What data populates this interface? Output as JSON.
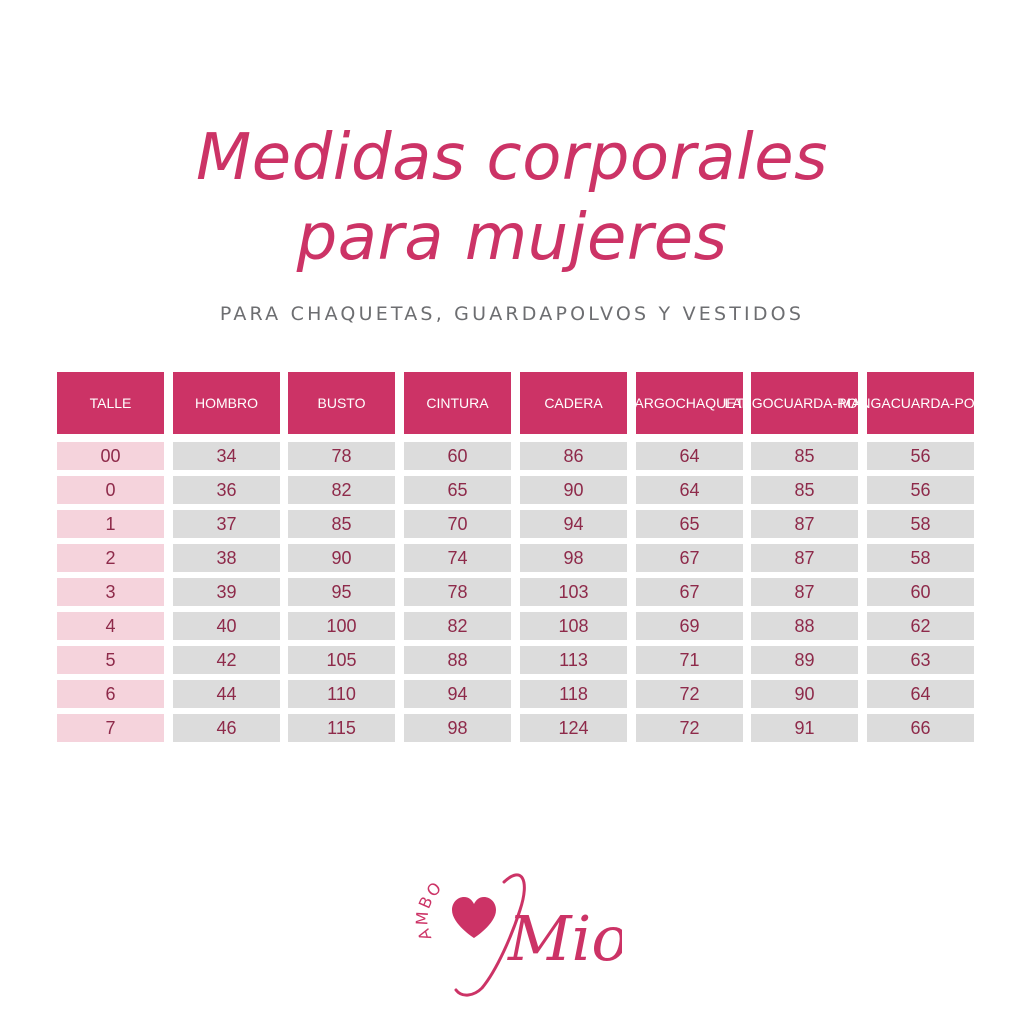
{
  "title": {
    "line1": "Medidas corporales",
    "line2": "para mujeres"
  },
  "subtitle": "PARA CHAQUETAS, GUARDAPOLVOS Y VESTIDOS",
  "table": {
    "headers": [
      [
        "TALLE"
      ],
      [
        "HOMBRO"
      ],
      [
        "BUSTO"
      ],
      [
        "CINTURA"
      ],
      [
        "CADERA"
      ],
      [
        "LARGO",
        "CHAQUETA"
      ],
      [
        "LARGO",
        "CUARDA-",
        "POLVO"
      ],
      [
        "MANGA",
        "CUARDA-",
        "POLVO"
      ]
    ],
    "rows": [
      [
        "00",
        "34",
        "78",
        "60",
        "86",
        "64",
        "85",
        "56"
      ],
      [
        "0",
        "36",
        "82",
        "65",
        "90",
        "64",
        "85",
        "56"
      ],
      [
        "1",
        "37",
        "85",
        "70",
        "94",
        "65",
        "87",
        "58"
      ],
      [
        "2",
        "38",
        "90",
        "74",
        "98",
        "67",
        "87",
        "58"
      ],
      [
        "3",
        "39",
        "95",
        "78",
        "103",
        "67",
        "87",
        "60"
      ],
      [
        "4",
        "40",
        "100",
        "82",
        "108",
        "69",
        "88",
        "62"
      ],
      [
        "5",
        "42",
        "105",
        "88",
        "113",
        "71",
        "89",
        "63"
      ],
      [
        "6",
        "44",
        "110",
        "94",
        "118",
        "72",
        "90",
        "64"
      ],
      [
        "7",
        "46",
        "115",
        "98",
        "124",
        "72",
        "91",
        "66"
      ]
    ]
  },
  "colors": {
    "accent": "#cc3366",
    "first_column_fill": "#f5d3dc",
    "cell_fill": "#dcdcdc",
    "cell_text": "#8e2a4a",
    "subtitle_text": "#6d6e71"
  },
  "logo": {
    "text_small": "AMBO",
    "text_large": "Mio",
    "icon": "heart-icon"
  }
}
